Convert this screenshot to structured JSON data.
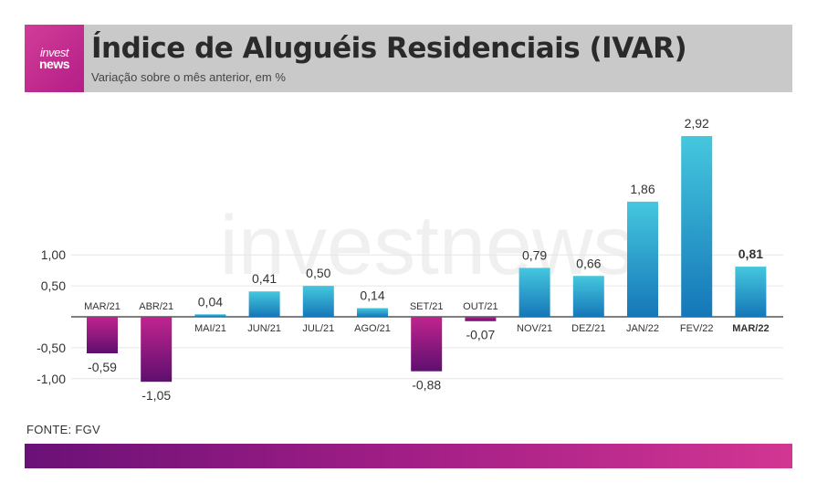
{
  "header": {
    "logo_line1": "invest",
    "logo_line2": "news",
    "title": "Índice de Aluguéis Residenciais (IVAR)",
    "subtitle": "Variação sobre o mês anterior, em %"
  },
  "watermark": "investnews",
  "source": "FONTE: FGV",
  "colors": {
    "header_bg": "#c9c9c9",
    "logo_bg": "#c42a8f",
    "positive_top": "#45c7de",
    "positive_bottom": "#1577b8",
    "negative_top": "#c0248e",
    "negative_bottom": "#5e0f6f"
  },
  "chart_data": {
    "type": "bar",
    "categories": [
      "MAR/21",
      "ABR/21",
      "MAI/21",
      "JUN/21",
      "JUL/21",
      "AGO/21",
      "SET/21",
      "OUT/21",
      "NOV/21",
      "DEZ/21",
      "JAN/22",
      "FEV/22",
      "MAR/22"
    ],
    "values": [
      -0.59,
      -1.05,
      0.04,
      0.41,
      0.5,
      0.14,
      -0.88,
      -0.07,
      0.79,
      0.66,
      1.86,
      2.92,
      0.81
    ],
    "value_labels": [
      "-0,59",
      "-1,05",
      "0,04",
      "0,41",
      "0,50",
      "0,14",
      "-0,88",
      "-0,07",
      "0,79",
      "0,66",
      "1,86",
      "2,92",
      "0,81"
    ],
    "highlight_index": 12,
    "y_ticks": [
      1.0,
      0.5,
      -0.5,
      -1.0
    ],
    "y_tick_labels": [
      "1,00",
      "0,50",
      "-0,50",
      "-1,00"
    ],
    "ylim": [
      -1.05,
      2.92
    ],
    "grid": true,
    "legend": "none"
  }
}
